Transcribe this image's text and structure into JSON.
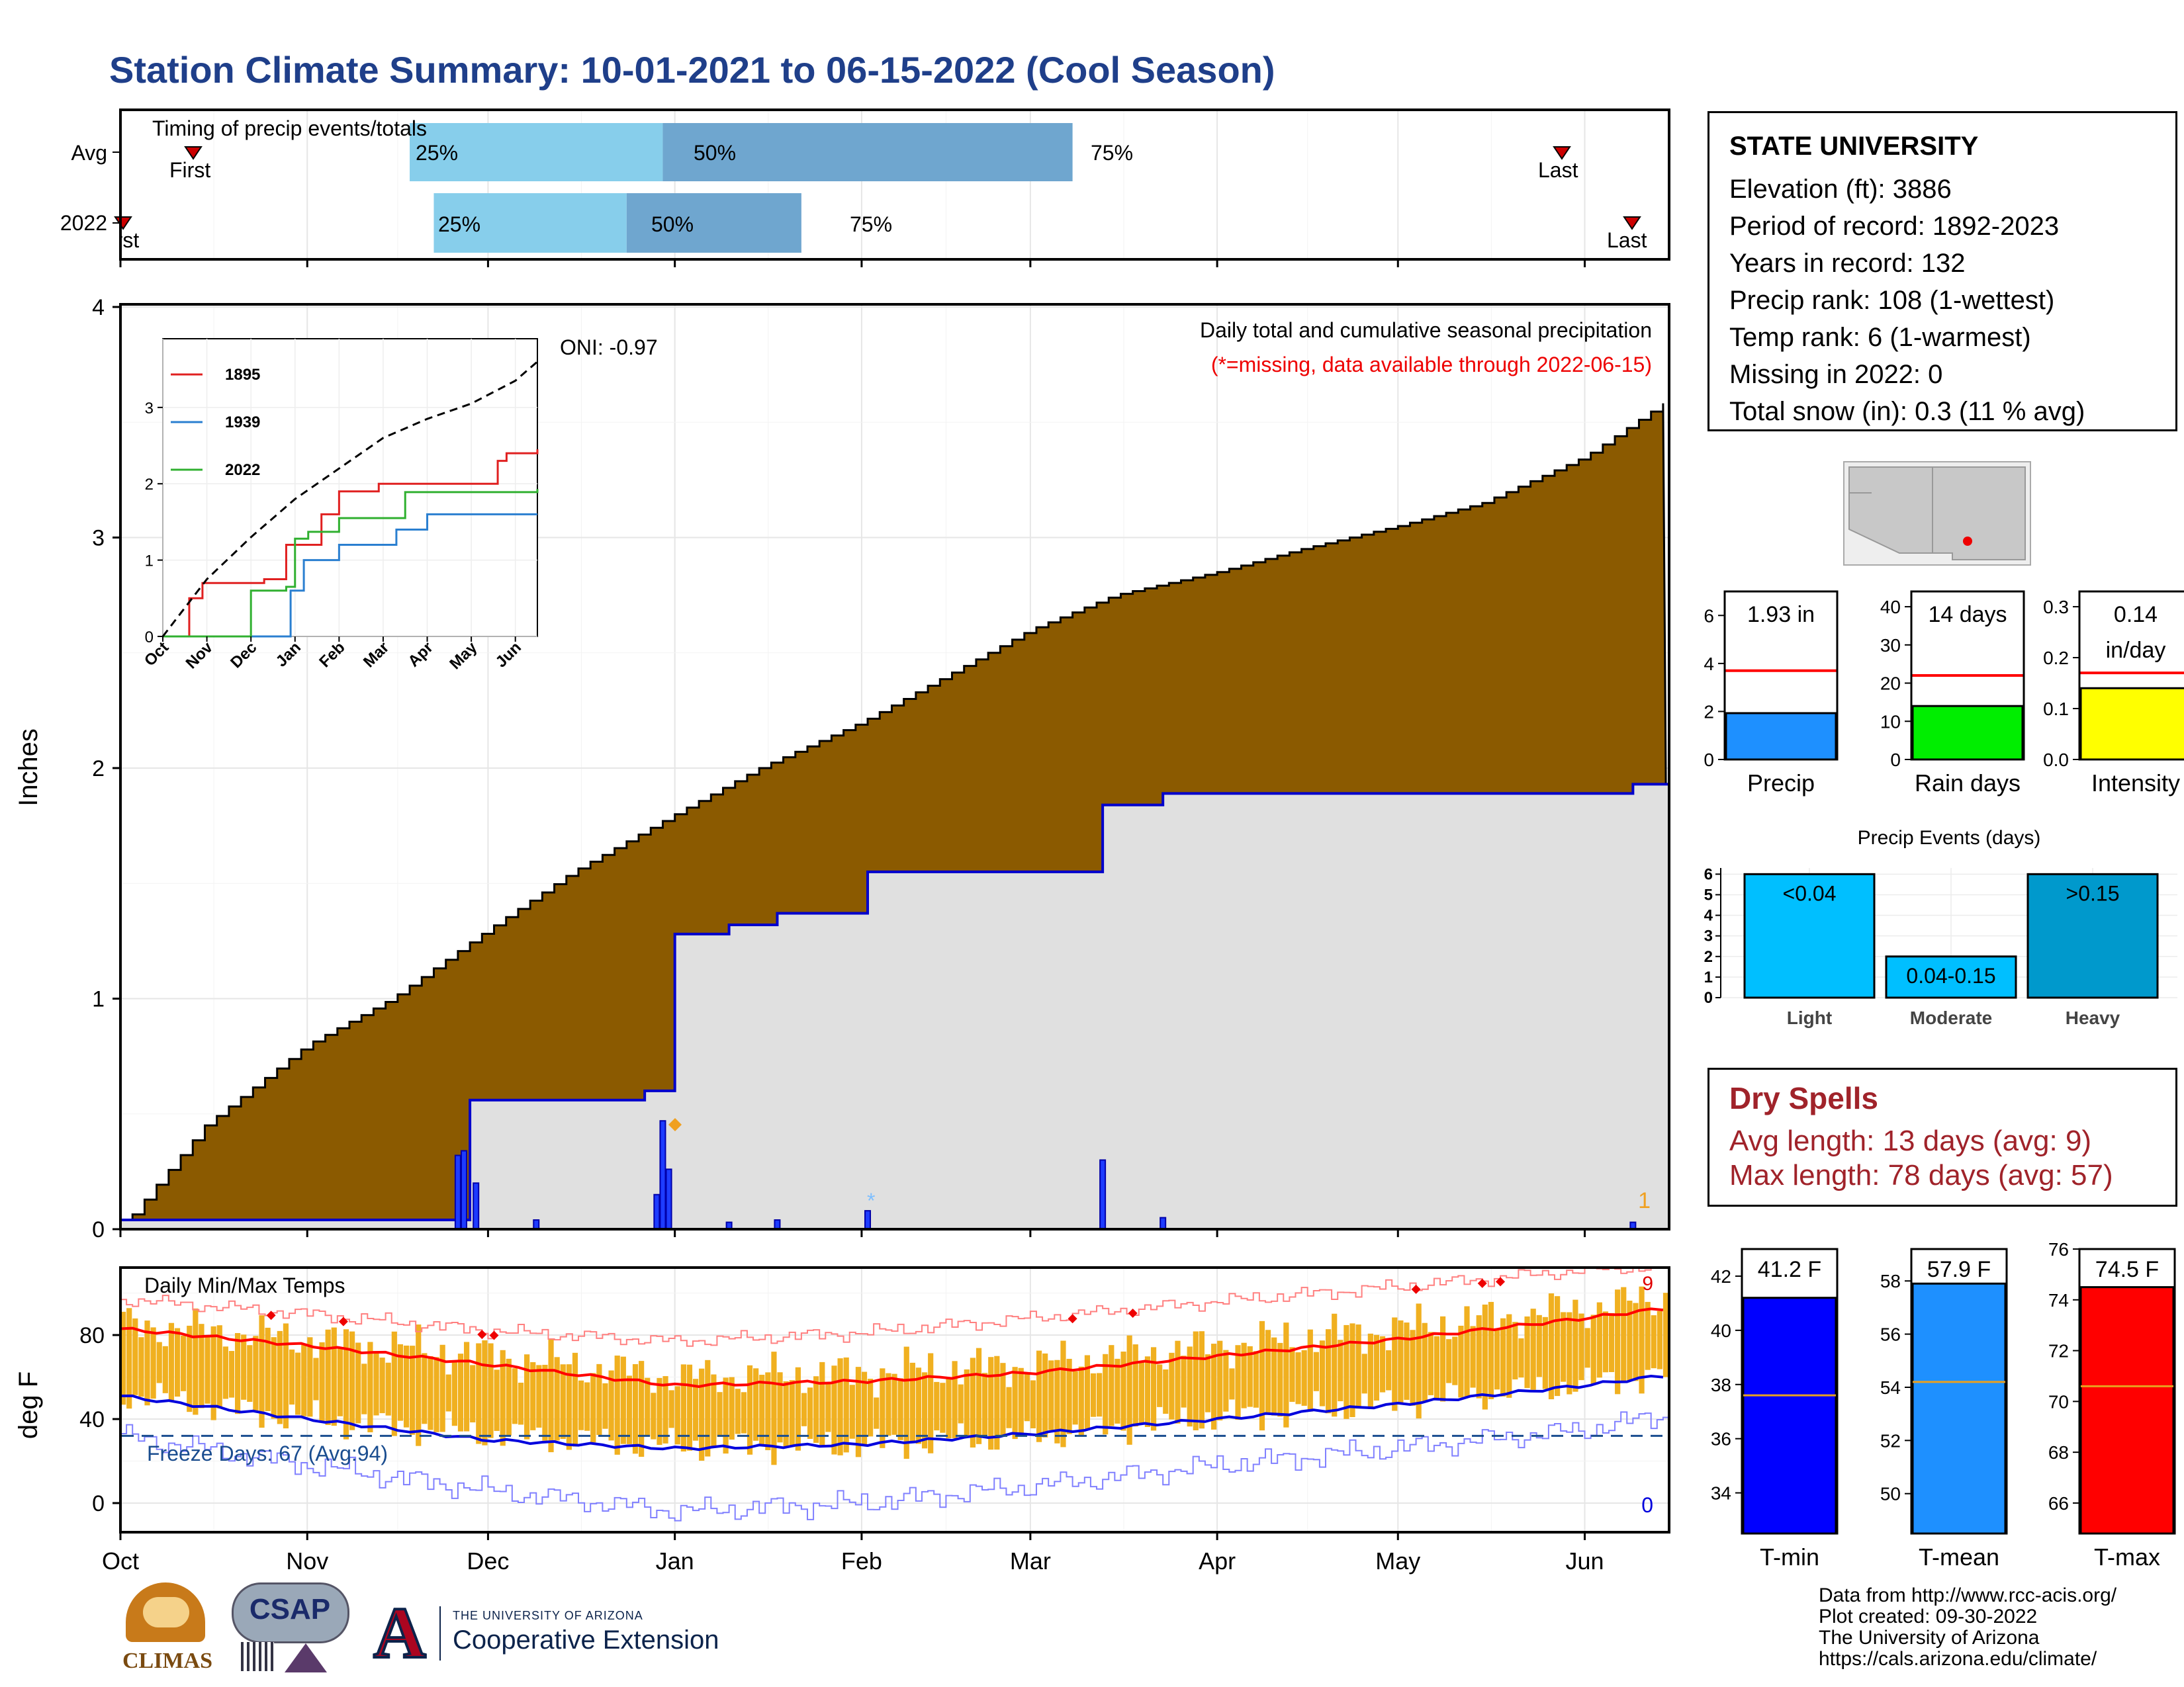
{
  "title": "Station Climate Summary: 10-01-2021 to 06-15-2022 (Cool Season)",
  "station": {
    "name": "STATE UNIVERSITY",
    "lines": [
      "Elevation (ft): 3886",
      "Period of record: 1892-2023",
      "Years in record: 132",
      "Precip rank: 108 (1-wettest)",
      "Temp rank: 6 (1-warmest)",
      "Missing in 2022: 0",
      "Total snow (in): 0.3 (11 % avg)"
    ]
  },
  "timing": {
    "title": "Timing of precip events/totals",
    "rows": [
      "Avg",
      "2022"
    ],
    "avg": {
      "first": "First",
      "last": "Last",
      "p25": "25%",
      "p50": "50%",
      "p75": "75%"
    },
    "y2022": {
      "first": "First",
      "last": "Last",
      "p25": "25%",
      "p50": "50%",
      "p75": "75%"
    }
  },
  "month_labels": [
    "Oct",
    "Nov",
    "Dec",
    "Jan",
    "Feb",
    "Mar",
    "Apr",
    "May",
    "Jun"
  ],
  "precip_panel": {
    "ylabel": "Inches",
    "y_ticks": [
      "0",
      "1",
      "2",
      "3",
      "4"
    ],
    "annotation_title": "Daily total and cumulative seasonal precipitation",
    "annotation_missing": "(*=missing, data available through 2022-06-15)",
    "oni": "ONI: -0.97",
    "count_label": "1"
  },
  "inset": {
    "y_ticks": [
      "0",
      "1",
      "2",
      "3"
    ],
    "x_labels": [
      "Oct",
      "Nov",
      "Dec",
      "Jan",
      "Feb",
      "Mar",
      "Apr",
      "May",
      "Jun"
    ],
    "legend": [
      "1895",
      "1939",
      "2022"
    ]
  },
  "temp_panel": {
    "ylabel": "deg F",
    "title": "Daily Min/Max Temps",
    "y_ticks": [
      "0",
      "40",
      "80"
    ],
    "freeze_label": "Freeze Days: 67 (Avg:94)",
    "count_top": "9",
    "count_bottom": "0"
  },
  "small_bars": [
    {
      "label": "Precip",
      "value_label": "1.93 in",
      "ticks": [
        "0",
        "2",
        "4",
        "6"
      ]
    },
    {
      "label": "Rain days",
      "value_label": "14 days",
      "ticks": [
        "0",
        "10",
        "20",
        "30",
        "40"
      ]
    },
    {
      "label": "Intensity",
      "value_label": "0.14",
      "value_label2": "in/day",
      "ticks": [
        "0.0",
        "0.1",
        "0.2",
        "0.3"
      ]
    }
  ],
  "precip_events": {
    "title": "Precip Events (days)",
    "ticks": [
      "0",
      "1",
      "2",
      "3",
      "4",
      "5",
      "6"
    ],
    "bars": [
      {
        "label": "Light",
        "value_label": "<0.04"
      },
      {
        "label": "Moderate",
        "value_label": "0.04-0.15"
      },
      {
        "label": "Heavy",
        "value_label": ">0.15"
      }
    ]
  },
  "dry_spells": {
    "title": "Dry Spells",
    "avg_line": "Avg length: 13 days (avg: 9)",
    "max_line": "Max length: 78 days (avg: 57)"
  },
  "temp_bars": [
    {
      "label": "T-min",
      "value_label": "41.2 F",
      "ticks": [
        "34",
        "36",
        "38",
        "40",
        "42"
      ]
    },
    {
      "label": "T-mean",
      "value_label": "57.9 F",
      "ticks": [
        "50",
        "52",
        "54",
        "56",
        "58"
      ]
    },
    {
      "label": "T-max",
      "value_label": "74.5 F",
      "ticks": [
        "66",
        "68",
        "70",
        "72",
        "74",
        "76"
      ]
    }
  ],
  "credits": [
    "Data from http://www.rcc-acis.org/",
    "Plot created: 09-30-2022",
    "The University of Arizona",
    "https://cals.arizona.edu/climate/"
  ],
  "logos": {
    "climas": "CLIMAS",
    "csap": "CSAP",
    "ua_small": "THE UNIVERSITY OF ARIZONA",
    "ua_big": "Cooperative Extension"
  },
  "colors": {
    "avg_cumulative": "#8b5a00",
    "season_cumulative": "#0000cc",
    "daily_bar": "#1e3cff",
    "temp_band": "#f0b020",
    "tmax_line": "#ff0000",
    "tmin_line": "#0000dd",
    "q1": "#87ceeb",
    "q2": "#6fa6cf",
    "precip_bar": "#1e90ff",
    "raindays_bar": "#00ee00",
    "intensity_bar": "#ffff00",
    "tmin_bar": "#0000ff",
    "tmean_bar": "#1e90ff",
    "tmax_bar": "#ff0000"
  },
  "chart_data": [
    {
      "type": "area",
      "title": "Daily total and cumulative seasonal precipitation",
      "ylabel": "Inches",
      "ylim": [
        0,
        4
      ],
      "x_range": [
        "2021-10-01",
        "2022-06-15"
      ],
      "series": [
        {
          "name": "avg-cumulative",
          "x": [
            "2021-10-01",
            "2021-10-15",
            "2021-11-01",
            "2021-11-15",
            "2021-12-01",
            "2021-12-15",
            "2022-01-01",
            "2022-01-15",
            "2022-02-01",
            "2022-02-15",
            "2022-03-01",
            "2022-03-15",
            "2022-04-01",
            "2022-04-15",
            "2022-05-01",
            "2022-05-15",
            "2022-06-01",
            "2022-06-15"
          ],
          "values": [
            0.0,
            0.45,
            0.8,
            1.0,
            1.3,
            1.55,
            1.8,
            2.0,
            2.2,
            2.4,
            2.6,
            2.75,
            2.85,
            2.95,
            3.05,
            3.15,
            3.35,
            3.6
          ]
        },
        {
          "name": "2022-cumulative",
          "x": [
            "2021-10-01",
            "2021-11-27",
            "2021-11-28",
            "2021-12-27",
            "2021-12-31",
            "2022-01-01",
            "2022-01-10",
            "2022-01-18",
            "2022-02-02",
            "2022-03-05",
            "2022-03-13",
            "2022-03-23",
            "2022-06-09",
            "2022-06-15"
          ],
          "values": [
            0.04,
            0.04,
            0.56,
            0.6,
            0.6,
            1.28,
            1.32,
            1.37,
            1.55,
            1.55,
            1.84,
            1.89,
            1.93,
            1.93
          ]
        }
      ],
      "daily_bars": {
        "x": [
          "2021-11-26",
          "2021-11-27",
          "2021-11-29",
          "2021-12-09",
          "2021-12-29",
          "2021-12-30",
          "2021-12-31",
          "2022-01-10",
          "2022-01-18",
          "2022-02-02",
          "2022-03-13",
          "2022-03-23",
          "2022-06-09"
        ],
        "values": [
          0.32,
          0.34,
          0.2,
          0.04,
          0.15,
          0.47,
          0.26,
          0.03,
          0.04,
          0.08,
          0.3,
          0.05,
          0.03
        ]
      },
      "oni": -0.97
    },
    {
      "type": "line",
      "title": "inset cumulative comparison",
      "ylim": [
        0,
        4
      ],
      "series": [
        {
          "name": "1895",
          "x": [
            0,
            0.6,
            0.9,
            2.3,
            2.8,
            3.6,
            4.0,
            4.9,
            7.2,
            7.6,
            7.8,
            8.5
          ],
          "values": [
            0,
            0.5,
            0.7,
            0.75,
            1.2,
            1.6,
            1.9,
            2.0,
            2.0,
            2.3,
            2.4,
            2.45
          ]
        },
        {
          "name": "1939",
          "x": [
            0,
            2.6,
            2.9,
            3.2,
            4.0,
            5.3,
            6.0,
            8.5
          ],
          "values": [
            0,
            0,
            0.6,
            1.0,
            1.2,
            1.4,
            1.6,
            1.6
          ]
        },
        {
          "name": "2022",
          "x": [
            0,
            1.9,
            2.0,
            2.8,
            3.0,
            3.3,
            4.0,
            5.5,
            8.5
          ],
          "values": [
            0,
            0,
            0.6,
            0.65,
            1.28,
            1.37,
            1.55,
            1.89,
            1.93
          ]
        },
        {
          "name": "average",
          "x": [
            0,
            1,
            2,
            3,
            4,
            5,
            6,
            7,
            8,
            8.5
          ],
          "values": [
            0,
            0.75,
            1.3,
            1.8,
            2.2,
            2.6,
            2.85,
            3.05,
            3.35,
            3.6
          ]
        }
      ]
    },
    {
      "type": "line",
      "title": "Daily Min/Max Temps",
      "ylabel": "deg F",
      "ylim": [
        -10,
        110
      ],
      "x_range": [
        "2021-10-01",
        "2022-06-15"
      ],
      "series": [
        {
          "name": "avg-tmax",
          "x": [
            "2021-10-01",
            "2021-11-01",
            "2021-12-01",
            "2022-01-01",
            "2022-02-01",
            "2022-03-01",
            "2022-04-01",
            "2022-05-01",
            "2022-06-01",
            "2022-06-15"
          ],
          "values": [
            83,
            75,
            66,
            56,
            58,
            62,
            70,
            78,
            88,
            93
          ]
        },
        {
          "name": "avg-tmin",
          "x": [
            "2021-10-01",
            "2021-11-01",
            "2021-12-01",
            "2022-01-01",
            "2022-02-01",
            "2022-03-01",
            "2022-04-01",
            "2022-05-01",
            "2022-06-01",
            "2022-06-15"
          ],
          "values": [
            51,
            40,
            30,
            26,
            28,
            33,
            40,
            47,
            56,
            61
          ]
        },
        {
          "name": "record-max",
          "x": [
            "2021-10-01",
            "2021-11-01",
            "2021-12-01",
            "2022-01-01",
            "2022-02-01",
            "2022-03-01",
            "2022-04-01",
            "2022-05-01",
            "2022-06-01",
            "2022-06-15"
          ],
          "values": [
            97,
            90,
            82,
            77,
            81,
            88,
            96,
            103,
            111,
            113
          ]
        },
        {
          "name": "record-min",
          "x": [
            "2021-10-01",
            "2021-11-01",
            "2021-12-01",
            "2022-01-01",
            "2022-02-01",
            "2022-03-01",
            "2022-04-01",
            "2022-05-01",
            "2022-06-01",
            "2022-06-15"
          ],
          "values": [
            32,
            18,
            6,
            -4,
            0,
            8,
            18,
            26,
            35,
            42
          ]
        },
        {
          "name": "2022-tmax",
          "x": [
            "2021-10-01",
            "2021-11-01",
            "2021-12-01",
            "2022-01-01",
            "2022-02-01",
            "2022-03-01",
            "2022-04-01",
            "2022-05-01",
            "2022-06-01",
            "2022-06-15"
          ],
          "values": [
            85,
            78,
            70,
            60,
            62,
            66,
            75,
            83,
            93,
            98
          ]
        },
        {
          "name": "2022-tmin",
          "x": [
            "2021-10-01",
            "2021-11-01",
            "2021-12-01",
            "2022-01-01",
            "2022-02-01",
            "2022-03-01",
            "2022-04-01",
            "2022-05-01",
            "2022-06-01",
            "2022-06-15"
          ],
          "values": [
            52,
            40,
            33,
            27,
            28,
            32,
            41,
            48,
            57,
            62
          ]
        }
      ],
      "freeze_line": 32
    },
    {
      "type": "bar",
      "categories": [
        "Precip"
      ],
      "values": [
        1.93
      ],
      "average": 3.7,
      "ylim": [
        0,
        7
      ]
    },
    {
      "type": "bar",
      "categories": [
        "Rain days"
      ],
      "values": [
        14
      ],
      "average": 22,
      "ylim": [
        0,
        44
      ]
    },
    {
      "type": "bar",
      "categories": [
        "Intensity"
      ],
      "values": [
        0.14
      ],
      "average": 0.17,
      "ylim": [
        0,
        0.33
      ]
    },
    {
      "type": "bar",
      "title": "Precip Events (days)",
      "categories": [
        "Light",
        "Moderate",
        "Heavy"
      ],
      "values": [
        6,
        2,
        6
      ],
      "ylim": [
        0,
        6.3
      ]
    },
    {
      "type": "bar",
      "categories": [
        "T-min"
      ],
      "values": [
        41.2
      ],
      "average": 37.6,
      "ylim": [
        32.5,
        43
      ]
    },
    {
      "type": "bar",
      "categories": [
        "T-mean"
      ],
      "values": [
        57.9
      ],
      "average": 54.2,
      "ylim": [
        48.5,
        59.2
      ]
    },
    {
      "type": "bar",
      "categories": [
        "T-max"
      ],
      "values": [
        74.5
      ],
      "average": 70.6,
      "ylim": [
        64.8,
        76
      ]
    }
  ]
}
